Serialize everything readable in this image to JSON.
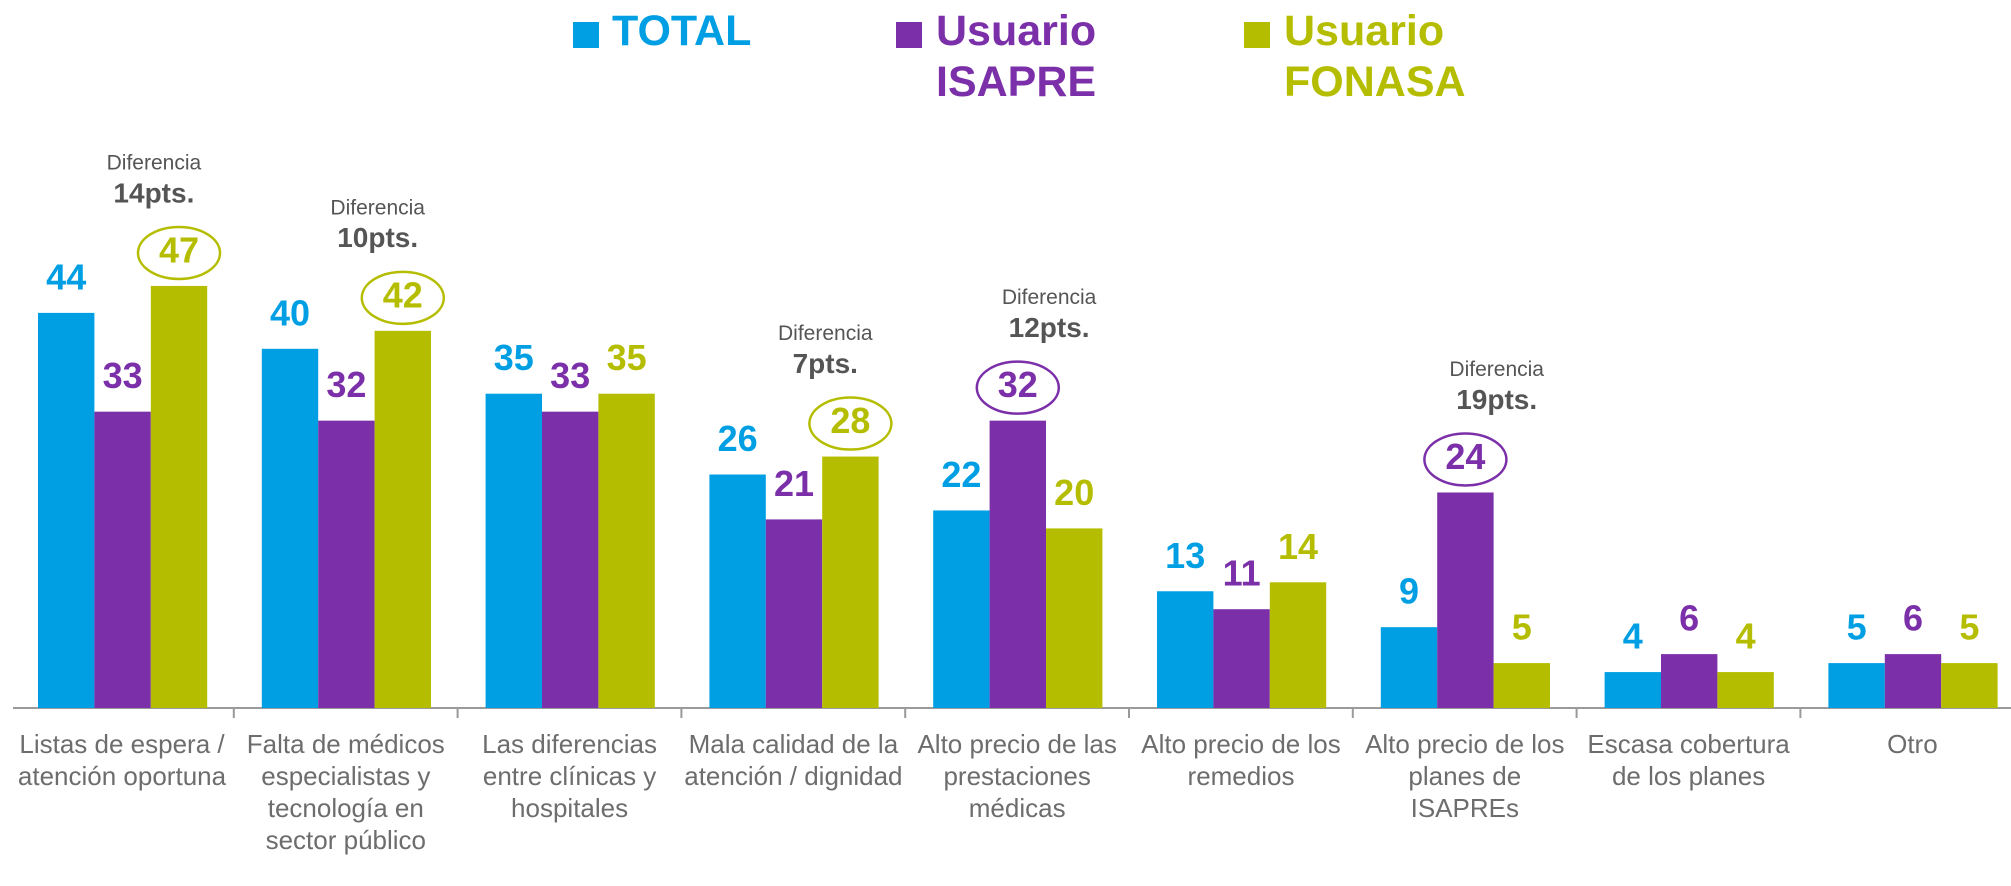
{
  "chart_data": {
    "type": "bar",
    "categories": [
      "Listas de espera / atención oportuna",
      "Falta de médicos especialistas y tecnología en sector público",
      "Las diferencias entre clínicas y hospitales",
      "Mala calidad de la atención / dignidad",
      "Alto precio de las prestaciones médicas",
      "Alto precio de los remedios",
      "Alto precio de los planes de ISAPREs",
      "Escasa cobertura de los planes",
      "Otro"
    ],
    "series": [
      {
        "name": "TOTAL",
        "color": "#009fe3",
        "values": [
          44,
          40,
          35,
          26,
          22,
          13,
          9,
          4,
          5
        ]
      },
      {
        "name": "Usuario ISAPRE",
        "color": "#7b2fa8",
        "values": [
          33,
          32,
          33,
          21,
          32,
          11,
          24,
          6,
          6
        ]
      },
      {
        "name": "Usuario FONASA",
        "color": "#b5bd00",
        "values": [
          47,
          42,
          35,
          28,
          20,
          14,
          5,
          4,
          5
        ]
      }
    ],
    "annotations": [
      {
        "title": "Diferencia",
        "text": "14pts.",
        "series": 2
      },
      {
        "title": "Diferencia",
        "text": "10pts.",
        "series": 2
      },
      null,
      {
        "title": "Diferencia",
        "text": "7pts.",
        "series": 2
      },
      {
        "title": "Diferencia",
        "text": "12pts.",
        "series": 1
      },
      null,
      {
        "title": "Diferencia",
        "text": "19pts.",
        "series": 1
      },
      null,
      null
    ]
  }
}
